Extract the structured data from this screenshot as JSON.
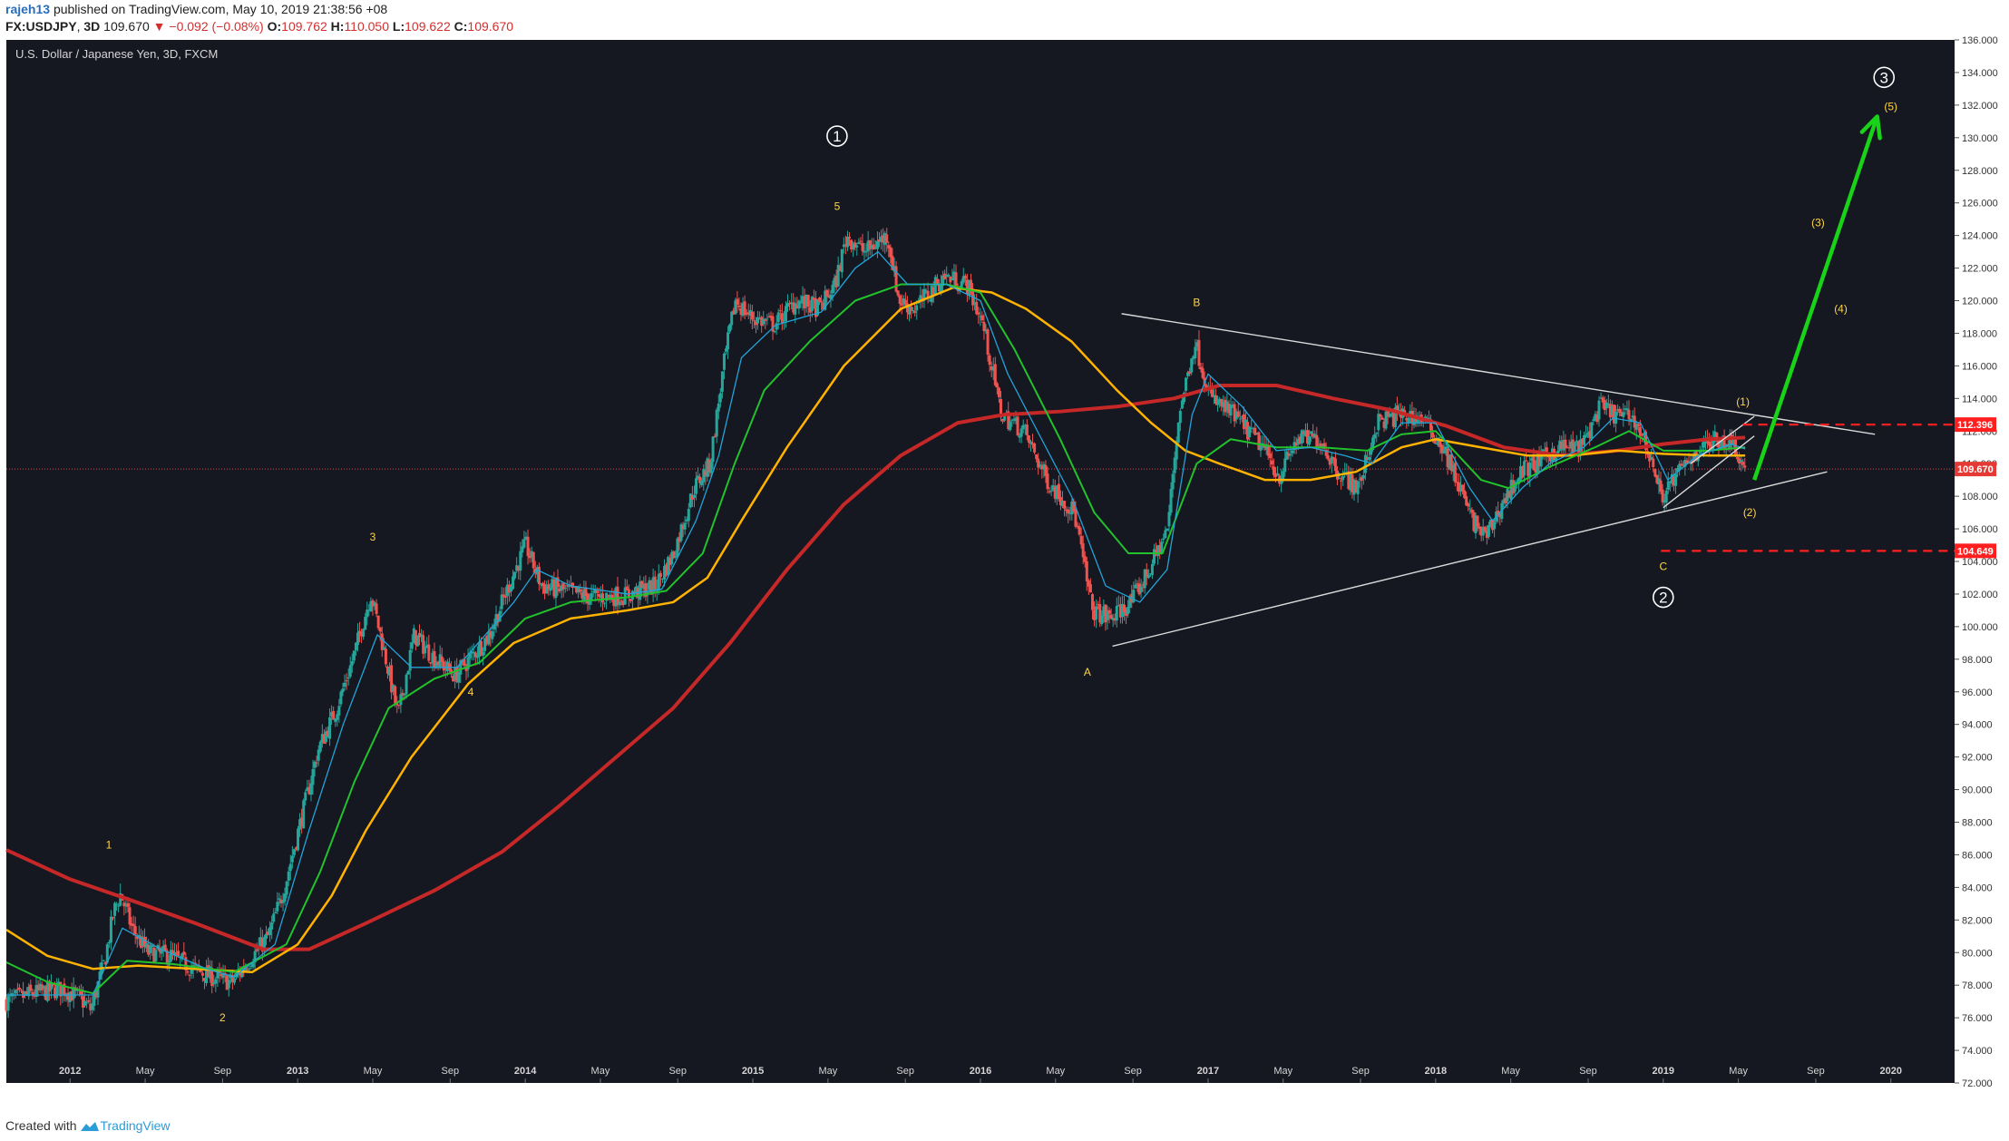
{
  "header": {
    "user": "rajeh13",
    "published": "published on TradingView.com, May 10, 2019 21:38:56 +08",
    "symbol": "FX:USDJPY",
    "interval": "3D",
    "last": "109.670",
    "change": "▼ −0.092 (−0.08%)",
    "open_label": "O:",
    "open": "109.762",
    "high_label": "H:",
    "high": "110.050",
    "low_label": "L:",
    "low": "109.622",
    "close_label": "C:",
    "close": "109.670"
  },
  "footer": {
    "created": "Created with",
    "brand": "TradingView"
  },
  "colors": {
    "background": "#151721",
    "up": "#26a69a",
    "down": "#ef5350",
    "ema_fast": "#22a4d8",
    "ema_mid": "#22c22c",
    "ema_slow": "#ffb300",
    "ema_long": "#c62828",
    "trendline": "#d9d9d9",
    "arrow": "#18d318",
    "wave_label": "#ffd54a",
    "level": "#ff1f1f"
  },
  "chart_data": {
    "type": "candlestick",
    "title": "U.S. Dollar / Japanese Yen, 3D, FXCM",
    "ylim": [
      72,
      136
    ],
    "y_ticks": [
      "136.000",
      "134.000",
      "132.000",
      "130.000",
      "128.000",
      "126.000",
      "124.000",
      "122.000",
      "120.000",
      "118.000",
      "116.000",
      "114.000",
      "112.000",
      "110.000",
      "108.000",
      "106.000",
      "104.000",
      "102.000",
      "100.000",
      "98.000",
      "96.000",
      "94.000",
      "92.000",
      "90.000",
      "88.000",
      "86.000",
      "84.000",
      "82.000",
      "80.000",
      "78.000",
      "76.000",
      "74.000",
      "72.000"
    ],
    "x_ticks": [
      {
        "t": 2012.0,
        "label": "2012",
        "bold": true
      },
      {
        "t": 2012.33,
        "label": "May"
      },
      {
        "t": 2012.67,
        "label": "Sep"
      },
      {
        "t": 2013.0,
        "label": "2013",
        "bold": true
      },
      {
        "t": 2013.33,
        "label": "May"
      },
      {
        "t": 2013.67,
        "label": "Sep"
      },
      {
        "t": 2014.0,
        "label": "2014",
        "bold": true
      },
      {
        "t": 2014.33,
        "label": "May"
      },
      {
        "t": 2014.67,
        "label": "Sep"
      },
      {
        "t": 2015.0,
        "label": "2015",
        "bold": true
      },
      {
        "t": 2015.33,
        "label": "May"
      },
      {
        "t": 2015.67,
        "label": "Sep"
      },
      {
        "t": 2016.0,
        "label": "2016",
        "bold": true
      },
      {
        "t": 2016.33,
        "label": "May"
      },
      {
        "t": 2016.67,
        "label": "Sep"
      },
      {
        "t": 2017.0,
        "label": "2017",
        "bold": true
      },
      {
        "t": 2017.33,
        "label": "May"
      },
      {
        "t": 2017.67,
        "label": "Sep"
      },
      {
        "t": 2018.0,
        "label": "2018",
        "bold": true
      },
      {
        "t": 2018.33,
        "label": "May"
      },
      {
        "t": 2018.67,
        "label": "Sep"
      },
      {
        "t": 2019.0,
        "label": "2019",
        "bold": true
      },
      {
        "t": 2019.33,
        "label": "May"
      },
      {
        "t": 2019.67,
        "label": "Sep"
      },
      {
        "t": 2020.0,
        "label": "2020",
        "bold": true
      }
    ],
    "price_path": [
      [
        2011.72,
        77.0
      ],
      [
        2011.85,
        77.5
      ],
      [
        2011.98,
        77.8
      ],
      [
        2012.05,
        77.2
      ],
      [
        2012.1,
        76.5
      ],
      [
        2012.16,
        79.5
      ],
      [
        2012.2,
        82.5
      ],
      [
        2012.23,
        83.6
      ],
      [
        2012.28,
        81.5
      ],
      [
        2012.35,
        80.0
      ],
      [
        2012.45,
        79.8
      ],
      [
        2012.55,
        79.0
      ],
      [
        2012.65,
        78.4
      ],
      [
        2012.72,
        78.2
      ],
      [
        2012.8,
        79.6
      ],
      [
        2012.88,
        81.0
      ],
      [
        2012.95,
        84.0
      ],
      [
        2013.02,
        88.0
      ],
      [
        2013.1,
        92.5
      ],
      [
        2013.18,
        95.0
      ],
      [
        2013.25,
        98.0
      ],
      [
        2013.33,
        102.0
      ],
      [
        2013.38,
        99.0
      ],
      [
        2013.45,
        94.5
      ],
      [
        2013.52,
        99.5
      ],
      [
        2013.6,
        98.2
      ],
      [
        2013.7,
        97.0
      ],
      [
        2013.75,
        97.8
      ],
      [
        2013.85,
        99.5
      ],
      [
        2013.95,
        103.0
      ],
      [
        2014.01,
        105.0
      ],
      [
        2014.08,
        102.5
      ],
      [
        2014.18,
        102.2
      ],
      [
        2014.3,
        101.8
      ],
      [
        2014.45,
        101.9
      ],
      [
        2014.58,
        102.5
      ],
      [
        2014.66,
        104.5
      ],
      [
        2014.75,
        108.5
      ],
      [
        2014.82,
        110.0
      ],
      [
        2014.88,
        116.0
      ],
      [
        2014.93,
        120.0
      ],
      [
        2015.0,
        119.0
      ],
      [
        2015.1,
        118.5
      ],
      [
        2015.2,
        120.0
      ],
      [
        2015.3,
        119.5
      ],
      [
        2015.37,
        121.0
      ],
      [
        2015.42,
        124.0
      ],
      [
        2015.5,
        123.0
      ],
      [
        2015.6,
        124.0
      ],
      [
        2015.65,
        120.0
      ],
      [
        2015.72,
        119.5
      ],
      [
        2015.85,
        121.5
      ],
      [
        2015.95,
        121.0
      ],
      [
        2016.02,
        118.5
      ],
      [
        2016.1,
        113.0
      ],
      [
        2016.2,
        112.0
      ],
      [
        2016.3,
        109.0
      ],
      [
        2016.42,
        107.0
      ],
      [
        2016.5,
        101.0
      ],
      [
        2016.58,
        100.5
      ],
      [
        2016.67,
        101.5
      ],
      [
        2016.75,
        103.5
      ],
      [
        2016.83,
        106.0
      ],
      [
        2016.88,
        113.0
      ],
      [
        2016.95,
        117.5
      ],
      [
        2017.02,
        114.0
      ],
      [
        2017.12,
        113.0
      ],
      [
        2017.25,
        111.0
      ],
      [
        2017.32,
        109.2
      ],
      [
        2017.4,
        111.5
      ],
      [
        2017.5,
        111.5
      ],
      [
        2017.58,
        109.5
      ],
      [
        2017.67,
        108.5
      ],
      [
        2017.75,
        112.5
      ],
      [
        2017.85,
        113.0
      ],
      [
        2017.95,
        112.8
      ],
      [
        2018.04,
        111.0
      ],
      [
        2018.1,
        109.0
      ],
      [
        2018.17,
        106.5
      ],
      [
        2018.23,
        105.5
      ],
      [
        2018.3,
        107.5
      ],
      [
        2018.38,
        109.5
      ],
      [
        2018.45,
        110.0
      ],
      [
        2018.55,
        111.0
      ],
      [
        2018.65,
        111.0
      ],
      [
        2018.73,
        113.5
      ],
      [
        2018.8,
        113.0
      ],
      [
        2018.88,
        112.8
      ],
      [
        2018.95,
        110.5
      ],
      [
        2019.0,
        108.0
      ],
      [
        2019.08,
        109.5
      ],
      [
        2019.17,
        111.0
      ],
      [
        2019.25,
        111.5
      ],
      [
        2019.32,
        111.3
      ],
      [
        2019.36,
        109.7
      ]
    ],
    "ema_fast": [
      [
        2011.72,
        77.4
      ],
      [
        2012.1,
        77.4
      ],
      [
        2012.23,
        81.5
      ],
      [
        2012.4,
        80.2
      ],
      [
        2012.6,
        79.0
      ],
      [
        2012.72,
        78.5
      ],
      [
        2012.9,
        80.5
      ],
      [
        2013.05,
        87.5
      ],
      [
        2013.2,
        94.0
      ],
      [
        2013.35,
        99.5
      ],
      [
        2013.5,
        97.5
      ],
      [
        2013.7,
        97.5
      ],
      [
        2013.95,
        101.5
      ],
      [
        2014.05,
        103.5
      ],
      [
        2014.2,
        102.5
      ],
      [
        2014.45,
        102.0
      ],
      [
        2014.6,
        102.3
      ],
      [
        2014.75,
        106.5
      ],
      [
        2014.85,
        110.5
      ],
      [
        2014.95,
        116.5
      ],
      [
        2015.1,
        118.5
      ],
      [
        2015.3,
        119.3
      ],
      [
        2015.45,
        122.0
      ],
      [
        2015.55,
        123.0
      ],
      [
        2015.68,
        121.0
      ],
      [
        2015.85,
        121.0
      ],
      [
        2016.0,
        120.0
      ],
      [
        2016.12,
        115.5
      ],
      [
        2016.25,
        112.0
      ],
      [
        2016.4,
        108.0
      ],
      [
        2016.55,
        102.5
      ],
      [
        2016.7,
        101.5
      ],
      [
        2016.82,
        103.5
      ],
      [
        2016.93,
        113.0
      ],
      [
        2017.0,
        115.5
      ],
      [
        2017.15,
        113.5
      ],
      [
        2017.3,
        110.8
      ],
      [
        2017.45,
        111.0
      ],
      [
        2017.6,
        110.5
      ],
      [
        2017.72,
        110.0
      ],
      [
        2017.85,
        112.5
      ],
      [
        2018.0,
        112.5
      ],
      [
        2018.15,
        108.5
      ],
      [
        2018.25,
        106.5
      ],
      [
        2018.38,
        108.5
      ],
      [
        2018.5,
        110.0
      ],
      [
        2018.65,
        111.0
      ],
      [
        2018.78,
        112.8
      ],
      [
        2018.9,
        112.5
      ],
      [
        2019.02,
        109.0
      ],
      [
        2019.15,
        110.5
      ],
      [
        2019.3,
        111.2
      ],
      [
        2019.36,
        110.9
      ]
    ],
    "ema_mid": [
      [
        2011.72,
        79.4
      ],
      [
        2011.9,
        78.2
      ],
      [
        2012.1,
        77.5
      ],
      [
        2012.25,
        79.5
      ],
      [
        2012.45,
        79.3
      ],
      [
        2012.72,
        78.8
      ],
      [
        2012.95,
        80.5
      ],
      [
        2013.1,
        85.0
      ],
      [
        2013.25,
        90.5
      ],
      [
        2013.4,
        95.0
      ],
      [
        2013.6,
        96.8
      ],
      [
        2013.8,
        97.8
      ],
      [
        2014.0,
        100.5
      ],
      [
        2014.2,
        101.5
      ],
      [
        2014.45,
        101.8
      ],
      [
        2014.62,
        102.2
      ],
      [
        2014.78,
        104.5
      ],
      [
        2014.92,
        110.0
      ],
      [
        2015.05,
        114.5
      ],
      [
        2015.25,
        117.5
      ],
      [
        2015.45,
        120.0
      ],
      [
        2015.65,
        121.0
      ],
      [
        2015.85,
        121.0
      ],
      [
        2016.0,
        120.5
      ],
      [
        2016.15,
        117.0
      ],
      [
        2016.35,
        111.5
      ],
      [
        2016.5,
        107.0
      ],
      [
        2016.65,
        104.5
      ],
      [
        2016.8,
        104.5
      ],
      [
        2016.95,
        110.0
      ],
      [
        2017.1,
        111.5
      ],
      [
        2017.3,
        111.0
      ],
      [
        2017.5,
        111.0
      ],
      [
        2017.7,
        110.8
      ],
      [
        2017.85,
        111.8
      ],
      [
        2018.0,
        112.0
      ],
      [
        2018.2,
        109.0
      ],
      [
        2018.32,
        108.5
      ],
      [
        2018.5,
        109.8
      ],
      [
        2018.7,
        111.0
      ],
      [
        2018.85,
        112.0
      ],
      [
        2019.0,
        110.8
      ],
      [
        2019.2,
        110.8
      ],
      [
        2019.36,
        111.0
      ]
    ],
    "ema_slow": [
      [
        2011.72,
        81.4
      ],
      [
        2011.9,
        79.8
      ],
      [
        2012.1,
        79.0
      ],
      [
        2012.3,
        79.2
      ],
      [
        2012.55,
        79.0
      ],
      [
        2012.8,
        78.8
      ],
      [
        2013.0,
        80.5
      ],
      [
        2013.15,
        83.5
      ],
      [
        2013.3,
        87.5
      ],
      [
        2013.5,
        92.0
      ],
      [
        2013.75,
        96.5
      ],
      [
        2013.95,
        99.0
      ],
      [
        2014.2,
        100.5
      ],
      [
        2014.45,
        101.0
      ],
      [
        2014.65,
        101.5
      ],
      [
        2014.8,
        103.0
      ],
      [
        2014.95,
        106.5
      ],
      [
        2015.15,
        111.0
      ],
      [
        2015.4,
        116.0
      ],
      [
        2015.65,
        119.5
      ],
      [
        2015.88,
        120.8
      ],
      [
        2016.05,
        120.5
      ],
      [
        2016.2,
        119.5
      ],
      [
        2016.4,
        117.5
      ],
      [
        2016.6,
        114.5
      ],
      [
        2016.75,
        112.5
      ],
      [
        2016.9,
        110.8
      ],
      [
        2017.05,
        110.0
      ],
      [
        2017.25,
        109.0
      ],
      [
        2017.45,
        109.0
      ],
      [
        2017.65,
        109.5
      ],
      [
        2017.85,
        111.0
      ],
      [
        2018.0,
        111.5
      ],
      [
        2018.2,
        111.0
      ],
      [
        2018.4,
        110.5
      ],
      [
        2018.6,
        110.5
      ],
      [
        2018.8,
        110.8
      ],
      [
        2019.0,
        110.6
      ],
      [
        2019.2,
        110.5
      ],
      [
        2019.36,
        110.5
      ]
    ],
    "ema_long": [
      [
        2011.72,
        86.3
      ],
      [
        2012.0,
        84.5
      ],
      [
        2012.25,
        83.3
      ],
      [
        2012.55,
        81.8
      ],
      [
        2012.85,
        80.2
      ],
      [
        2013.05,
        80.2
      ],
      [
        2013.3,
        81.8
      ],
      [
        2013.6,
        83.8
      ],
      [
        2013.9,
        86.2
      ],
      [
        2014.15,
        89.0
      ],
      [
        2014.4,
        92.0
      ],
      [
        2014.65,
        95.0
      ],
      [
        2014.9,
        99.0
      ],
      [
        2015.15,
        103.5
      ],
      [
        2015.4,
        107.5
      ],
      [
        2015.65,
        110.5
      ],
      [
        2015.9,
        112.5
      ],
      [
        2016.1,
        113.0
      ],
      [
        2016.35,
        113.2
      ],
      [
        2016.6,
        113.5
      ],
      [
        2016.85,
        114.0
      ],
      [
        2017.05,
        114.8
      ],
      [
        2017.3,
        114.8
      ],
      [
        2017.55,
        114.0
      ],
      [
        2017.8,
        113.3
      ],
      [
        2018.05,
        112.3
      ],
      [
        2018.3,
        111.0
      ],
      [
        2018.55,
        110.5
      ],
      [
        2018.8,
        110.8
      ],
      [
        2019.0,
        111.2
      ],
      [
        2019.2,
        111.5
      ],
      [
        2019.36,
        111.6
      ]
    ],
    "trendlines": [
      {
        "from": [
          2016.58,
          98.8
        ],
        "to": [
          2019.72,
          109.5
        ]
      },
      {
        "from": [
          2016.62,
          119.2
        ],
        "to": [
          2019.93,
          111.8
        ]
      },
      {
        "from": [
          2019.0,
          107.3
        ],
        "to": [
          2019.4,
          111.7
        ]
      },
      {
        "from": [
          2019.12,
          110.0
        ],
        "to": [
          2019.4,
          112.9
        ]
      }
    ],
    "levels": [
      {
        "price": 112.396,
        "label": "112.396",
        "from": 2019.35,
        "dashed": true
      },
      {
        "price": 104.649,
        "label": "104.649",
        "from": 2018.99,
        "dashed": true
      }
    ],
    "last_price": {
      "price": 109.67,
      "label": "109.670"
    },
    "projection_arrow": {
      "from": [
        2019.4,
        109.0
      ],
      "to": [
        2019.94,
        131.3
      ]
    },
    "wave_labels": [
      {
        "t": 2012.17,
        "p": 86.6,
        "text": "1",
        "circled": false
      },
      {
        "t": 2012.67,
        "p": 76.0,
        "text": "2",
        "circled": false
      },
      {
        "t": 2013.33,
        "p": 105.5,
        "text": "3",
        "circled": false
      },
      {
        "t": 2013.76,
        "p": 96.0,
        "text": "4",
        "circled": false
      },
      {
        "t": 2015.37,
        "p": 125.8,
        "text": "5",
        "circled": false
      },
      {
        "t": 2015.37,
        "p": 130.1,
        "text": "1",
        "circled": true
      },
      {
        "t": 2016.47,
        "p": 97.2,
        "text": "A",
        "circled": false
      },
      {
        "t": 2016.95,
        "p": 119.9,
        "text": "B",
        "circled": false
      },
      {
        "t": 2019.0,
        "p": 103.7,
        "text": "C",
        "circled": false
      },
      {
        "t": 2019.0,
        "p": 101.8,
        "text": "2",
        "circled": true
      },
      {
        "t": 2019.97,
        "p": 133.7,
        "text": "3",
        "circled": true
      },
      {
        "t": 2019.35,
        "p": 113.8,
        "text": "(1)",
        "circled": false
      },
      {
        "t": 2019.38,
        "p": 107.0,
        "text": "(2)",
        "circled": false
      },
      {
        "t": 2019.68,
        "p": 124.8,
        "text": "(3)",
        "circled": false
      },
      {
        "t": 2019.78,
        "p": 119.5,
        "text": "(4)",
        "circled": false
      },
      {
        "t": 2020.0,
        "p": 131.9,
        "text": "(5)",
        "circled": false
      }
    ]
  }
}
